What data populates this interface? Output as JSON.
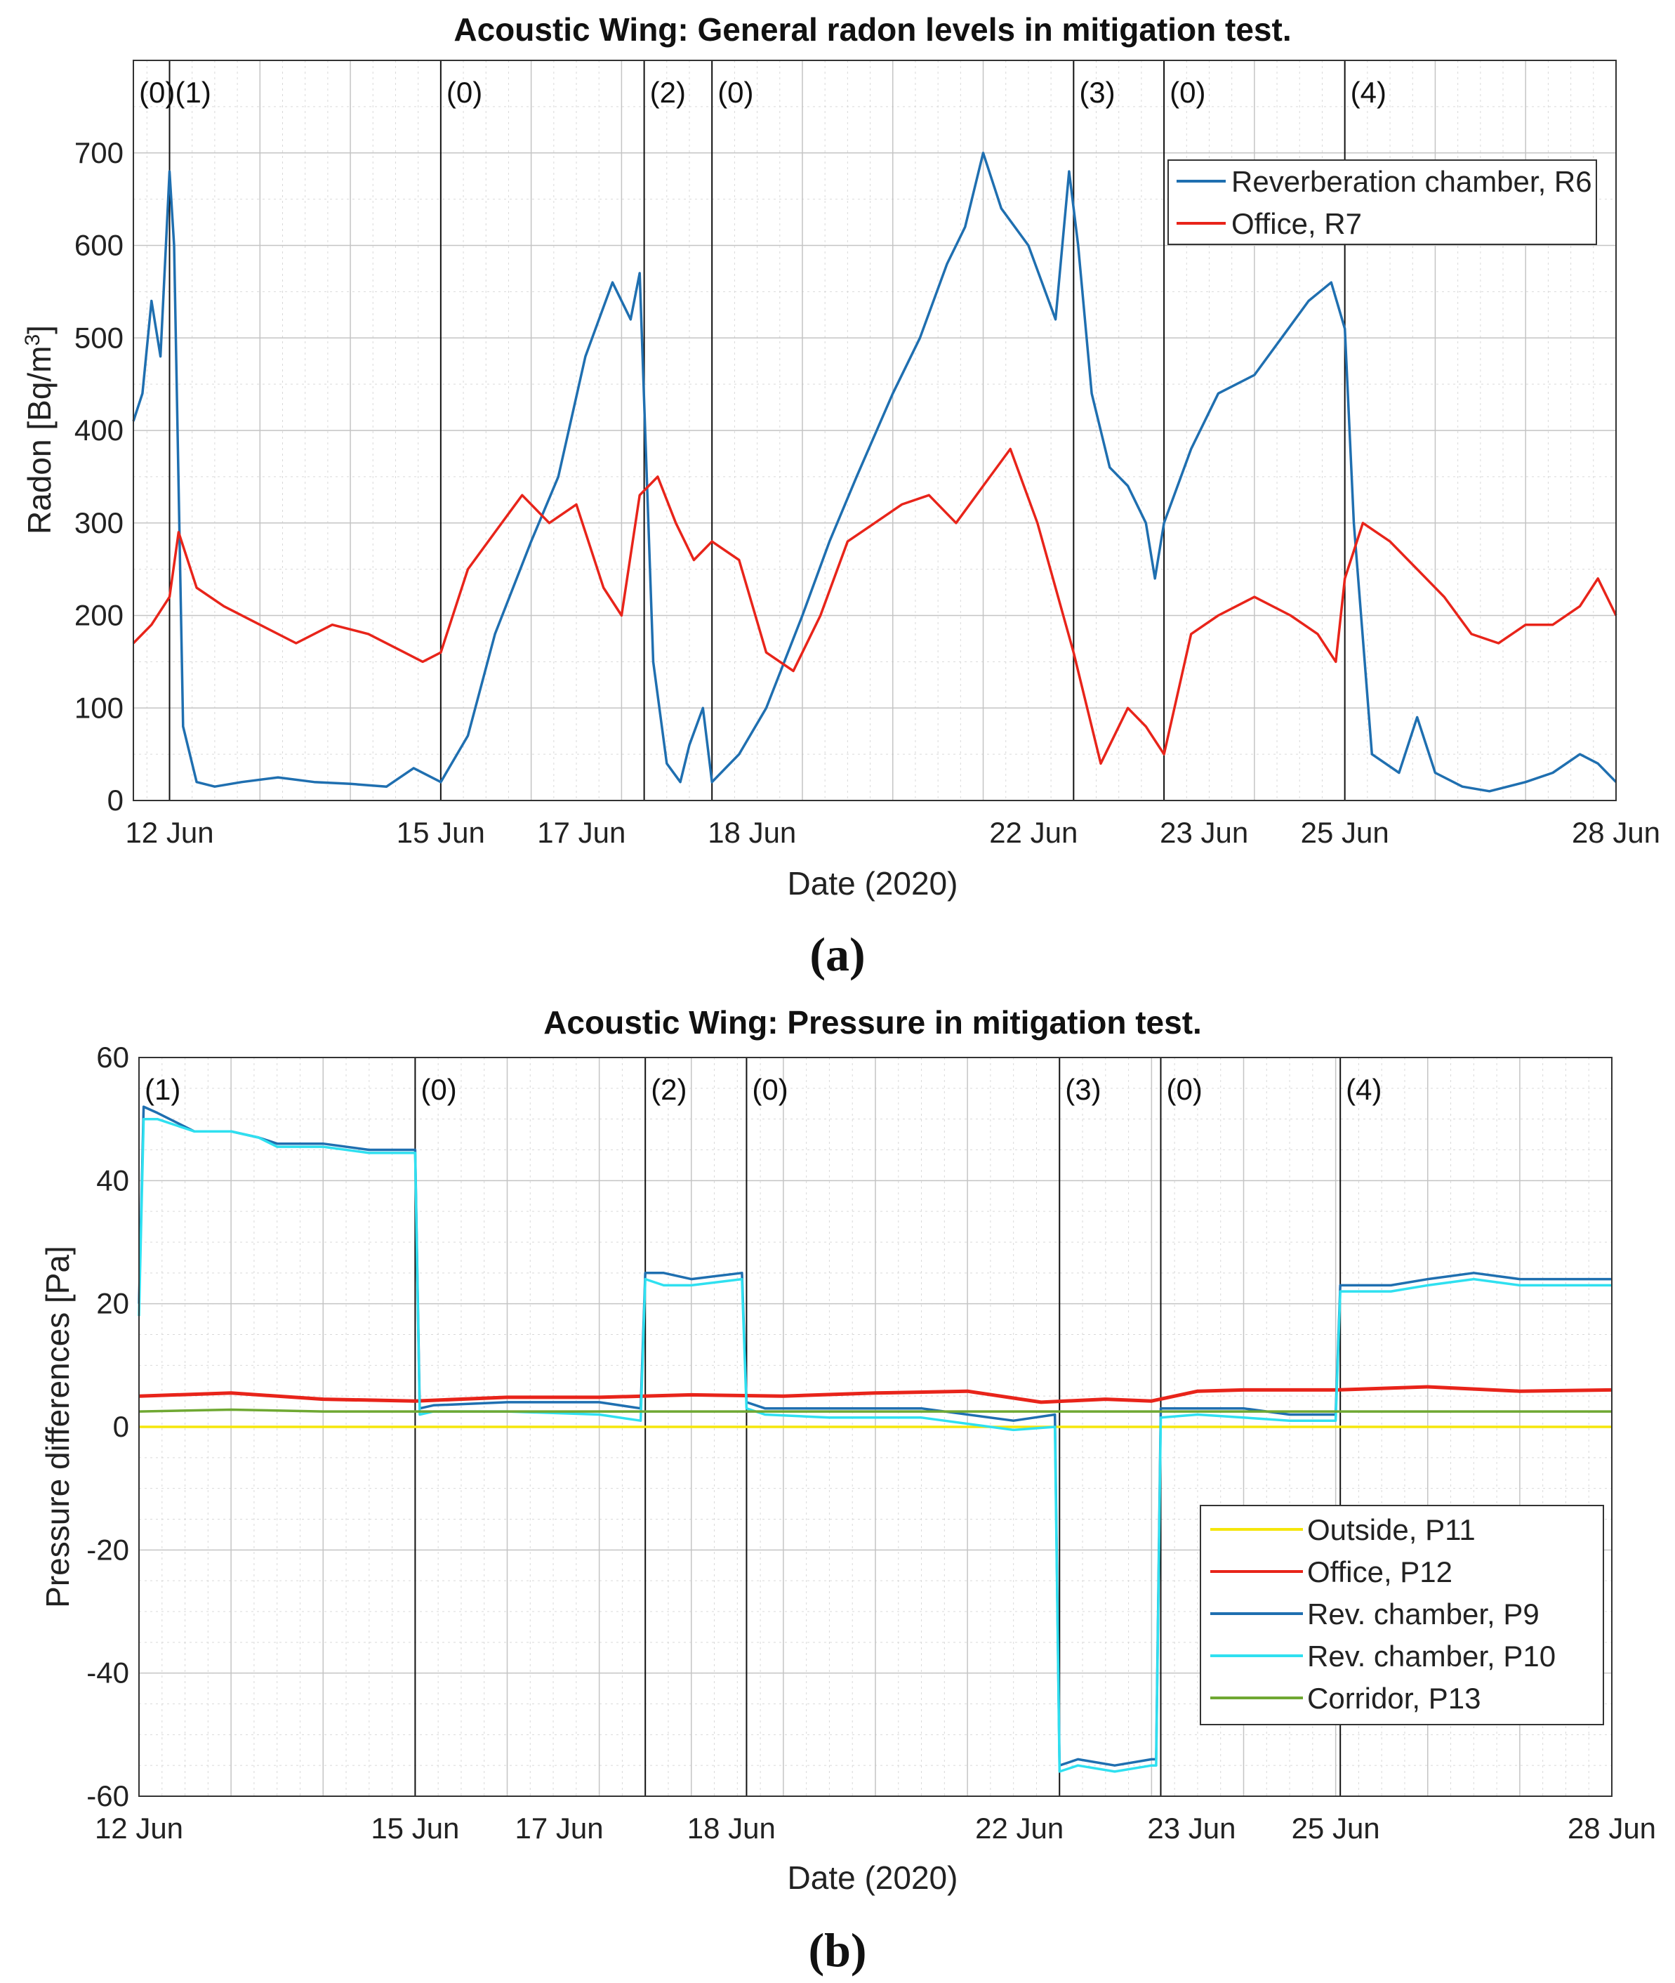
{
  "chart_data": [
    {
      "type": "line",
      "title": "Acoustic Wing: General radon levels in mitigation test.",
      "xlabel": "Date (2020)",
      "ylabel": "Radon [Bq/m3]",
      "ylabel_main": "Radon [Bq/m",
      "ylabel_sup": "3",
      "ylabel_tail": "]",
      "panel_label": "(a)",
      "xlim": [
        11.6,
        28
      ],
      "ylim": [
        0,
        800
      ],
      "grid": true,
      "legend_position": "top-right",
      "x_ticks": [
        {
          "value": 12,
          "label": "12 Jun"
        },
        {
          "value": 15,
          "label": "15 Jun"
        },
        {
          "value": 17,
          "label": "17 Jun"
        },
        {
          "value": 18,
          "label": "18 Jun"
        },
        {
          "value": 22,
          "label": "22 Jun"
        },
        {
          "value": 23,
          "label": "23 Jun"
        },
        {
          "value": 25,
          "label": "25 Jun"
        },
        {
          "value": 28,
          "label": "28 Jun"
        }
      ],
      "y_ticks": [
        0,
        100,
        200,
        300,
        400,
        500,
        600,
        700
      ],
      "phase_lines": [
        12,
        15,
        17.25,
        18,
        22,
        23,
        25
      ],
      "phase_labels": [
        {
          "x": 11.6,
          "label": "(0)"
        },
        {
          "x": 12,
          "label": "(1)"
        },
        {
          "x": 15,
          "label": "(0)"
        },
        {
          "x": 17.25,
          "label": "(2)"
        },
        {
          "x": 18,
          "label": "(0)"
        },
        {
          "x": 22,
          "label": "(3)"
        },
        {
          "x": 23,
          "label": "(0)"
        },
        {
          "x": 25,
          "label": "(4)"
        }
      ],
      "series": [
        {
          "name": "Reverberation chamber, R6",
          "color": "#1f6fb0",
          "x": [
            11.6,
            11.7,
            11.8,
            11.9,
            12.0,
            12.05,
            12.15,
            12.3,
            12.5,
            12.8,
            13.2,
            13.6,
            14.0,
            14.4,
            14.7,
            15.0,
            15.3,
            15.6,
            16.0,
            16.3,
            16.6,
            16.9,
            17.1,
            17.2,
            17.35,
            17.5,
            17.65,
            17.75,
            17.9,
            18.0,
            18.3,
            18.6,
            19.0,
            19.3,
            19.6,
            20.0,
            20.3,
            20.6,
            20.8,
            21.0,
            21.2,
            21.5,
            21.8,
            21.95,
            22.05,
            22.2,
            22.4,
            22.6,
            22.8,
            22.9,
            23.0,
            23.3,
            23.6,
            24.0,
            24.3,
            24.6,
            24.85,
            25.0,
            25.1,
            25.3,
            25.6,
            25.8,
            26.0,
            26.3,
            26.6,
            27.0,
            27.3,
            27.6,
            27.8,
            28.0
          ],
          "y": [
            410,
            440,
            540,
            480,
            680,
            600,
            80,
            20,
            15,
            20,
            25,
            20,
            18,
            15,
            35,
            20,
            70,
            180,
            280,
            350,
            480,
            560,
            520,
            570,
            150,
            40,
            20,
            60,
            100,
            20,
            50,
            100,
            200,
            280,
            350,
            440,
            500,
            580,
            620,
            700,
            640,
            600,
            520,
            680,
            600,
            440,
            360,
            340,
            300,
            240,
            300,
            380,
            440,
            460,
            500,
            540,
            560,
            510,
            300,
            50,
            30,
            90,
            30,
            15,
            10,
            20,
            30,
            50,
            40,
            20
          ]
        },
        {
          "name": "Office, R7",
          "color": "#e8241a",
          "x": [
            11.6,
            11.8,
            12.0,
            12.1,
            12.3,
            12.6,
            13.0,
            13.4,
            13.8,
            14.2,
            14.6,
            14.8,
            15.0,
            15.3,
            15.6,
            15.9,
            16.2,
            16.5,
            16.8,
            17.0,
            17.2,
            17.4,
            17.6,
            17.8,
            18.0,
            18.3,
            18.6,
            18.9,
            19.2,
            19.5,
            19.8,
            20.1,
            20.4,
            20.7,
            21.0,
            21.3,
            21.6,
            21.8,
            22.0,
            22.3,
            22.6,
            22.8,
            23.0,
            23.3,
            23.6,
            24.0,
            24.4,
            24.7,
            24.9,
            25.0,
            25.2,
            25.5,
            25.8,
            26.1,
            26.4,
            26.7,
            27.0,
            27.3,
            27.6,
            27.8,
            28.0
          ],
          "y": [
            170,
            190,
            220,
            290,
            230,
            210,
            190,
            170,
            190,
            180,
            160,
            150,
            160,
            250,
            290,
            330,
            300,
            320,
            230,
            200,
            330,
            350,
            300,
            260,
            280,
            260,
            160,
            140,
            200,
            280,
            300,
            320,
            330,
            300,
            340,
            380,
            300,
            230,
            160,
            40,
            100,
            80,
            50,
            180,
            200,
            220,
            200,
            180,
            150,
            240,
            300,
            280,
            250,
            220,
            180,
            170,
            190,
            190,
            210,
            240,
            200
          ]
        }
      ]
    },
    {
      "type": "line",
      "title": "Acoustic Wing: Pressure in mitigation test.",
      "xlabel": "Date (2020)",
      "ylabel": "Pressure differences [Pa]",
      "panel_label": "(b)",
      "xlim": [
        12,
        28
      ],
      "ylim": [
        -60,
        60
      ],
      "grid": true,
      "legend_position": "lower-right",
      "x_ticks": [
        {
          "value": 12,
          "label": "12 Jun"
        },
        {
          "value": 15,
          "label": "15 Jun"
        },
        {
          "value": 17,
          "label": "17 Jun"
        },
        {
          "value": 18,
          "label": "18 Jun"
        },
        {
          "value": 22,
          "label": "22 Jun"
        },
        {
          "value": 23,
          "label": "23 Jun"
        },
        {
          "value": 25,
          "label": "25 Jun"
        },
        {
          "value": 28,
          "label": "28 Jun"
        }
      ],
      "y_ticks": [
        -60,
        -40,
        -20,
        0,
        20,
        40,
        60
      ],
      "phase_lines": [
        15,
        17.5,
        18.6,
        22,
        23.1,
        25.05
      ],
      "phase_labels": [
        {
          "x": 12,
          "label": "(1)"
        },
        {
          "x": 15,
          "label": "(0)"
        },
        {
          "x": 17.5,
          "label": "(2)"
        },
        {
          "x": 18.6,
          "label": "(0)"
        },
        {
          "x": 22,
          "label": "(3)"
        },
        {
          "x": 23.1,
          "label": "(0)"
        },
        {
          "x": 25.05,
          "label": "(4)"
        }
      ],
      "series": [
        {
          "name": "Outside, P11",
          "color": "#f5e60a",
          "x": [
            12,
            28
          ],
          "y": [
            0,
            0
          ]
        },
        {
          "name": "Office, P12",
          "color": "#e8241a",
          "x": [
            12,
            13,
            14,
            15,
            16,
            17,
            18,
            19,
            20,
            21,
            21.8,
            22.5,
            23,
            23.5,
            24,
            25,
            26,
            27,
            28
          ],
          "y": [
            5,
            5.5,
            4.5,
            4.2,
            4.8,
            4.8,
            5.2,
            5,
            5.5,
            5.8,
            4,
            4.5,
            4.2,
            5.8,
            6,
            6,
            6.5,
            5.8,
            6
          ]
        },
        {
          "name": "Rev. chamber, P9",
          "color": "#1f6fb0",
          "x": [
            12,
            12.05,
            12.2,
            12.6,
            13.0,
            13.3,
            13.5,
            14.0,
            14.5,
            15.0,
            15.05,
            15.2,
            16.0,
            17.0,
            17.45,
            17.5,
            17.7,
            18.0,
            18.55,
            18.6,
            18.8,
            19.5,
            20.5,
            21.5,
            21.95,
            22.0,
            22.2,
            22.6,
            23.0,
            23.05,
            23.1,
            23.5,
            24.0,
            24.5,
            25.0,
            25.05,
            25.2,
            25.6,
            26.0,
            26.5,
            27.0,
            27.5,
            28.0
          ],
          "y": [
            20,
            52,
            51,
            48,
            48,
            47,
            46,
            46,
            45,
            45,
            3,
            3.5,
            4,
            4,
            3,
            25,
            25,
            24,
            25,
            4,
            3,
            3,
            3,
            1,
            2,
            -55,
            -54,
            -55,
            -54,
            -54,
            3,
            3,
            3,
            2,
            2,
            23,
            23,
            23,
            24,
            25,
            24,
            24,
            24
          ]
        },
        {
          "name": "Rev. chamber, P10",
          "color": "#2fe0f0",
          "x": [
            12,
            12.05,
            12.2,
            12.6,
            13.0,
            13.3,
            13.5,
            14.0,
            14.5,
            15.0,
            15.05,
            15.2,
            16.0,
            17.0,
            17.45,
            17.5,
            17.7,
            18.0,
            18.55,
            18.6,
            18.8,
            19.5,
            20.5,
            21.5,
            21.95,
            22.0,
            22.2,
            22.6,
            23.0,
            23.05,
            23.1,
            23.5,
            24.0,
            24.5,
            25.0,
            25.05,
            25.2,
            25.6,
            26.0,
            26.5,
            27.0,
            27.5,
            28.0
          ],
          "y": [
            18,
            50,
            50,
            48,
            48,
            47,
            45.5,
            45.5,
            44.5,
            44.5,
            2,
            2.5,
            2.5,
            2,
            1,
            24,
            23,
            23,
            24,
            3,
            2,
            1.5,
            1.5,
            -0.5,
            0,
            -56,
            -55,
            -56,
            -55,
            -55,
            1.5,
            2,
            1.5,
            1,
            1,
            22,
            22,
            22,
            23,
            24,
            23,
            23,
            23
          ]
        },
        {
          "name": "Corridor, P13",
          "color": "#6fa832",
          "x": [
            12,
            13,
            14,
            15,
            16,
            17,
            18,
            19,
            20,
            21,
            22,
            23,
            24,
            25,
            26,
            27,
            28
          ],
          "y": [
            2.5,
            2.8,
            2.5,
            2.5,
            2.5,
            2.5,
            2.5,
            2.5,
            2.5,
            2.5,
            2.5,
            2.5,
            2.5,
            2.5,
            2.5,
            2.5,
            2.5
          ]
        }
      ]
    }
  ]
}
